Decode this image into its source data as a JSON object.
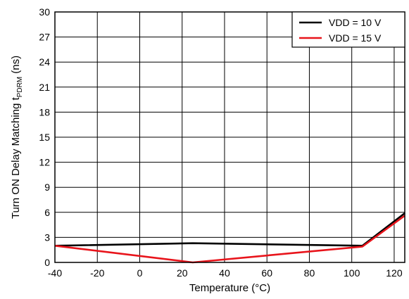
{
  "chart_data": {
    "type": "line",
    "xlabel": "Temperature (°C)",
    "ylabel_main": "Turn ON Delay Matching t",
    "ylabel_sub": "PDRM",
    "ylabel_unit": " (ns)",
    "xlim": [
      -40,
      125
    ],
    "ylim": [
      0,
      30
    ],
    "x_ticks": [
      -40,
      -20,
      0,
      20,
      40,
      60,
      80,
      100,
      120
    ],
    "y_ticks": [
      0,
      3,
      6,
      9,
      12,
      15,
      18,
      21,
      24,
      27,
      30
    ],
    "grid": true,
    "legend_position": "top-right",
    "series": [
      {
        "name": "VDD = 10 V",
        "color": "#000000",
        "x": [
          -40,
          25,
          105,
          125
        ],
        "y": [
          2.0,
          2.3,
          2.0,
          5.9
        ]
      },
      {
        "name": "VDD = 15 V",
        "color": "#e8141b",
        "x": [
          -40,
          25,
          105,
          125
        ],
        "y": [
          2.0,
          0.0,
          1.9,
          5.6
        ]
      }
    ]
  }
}
